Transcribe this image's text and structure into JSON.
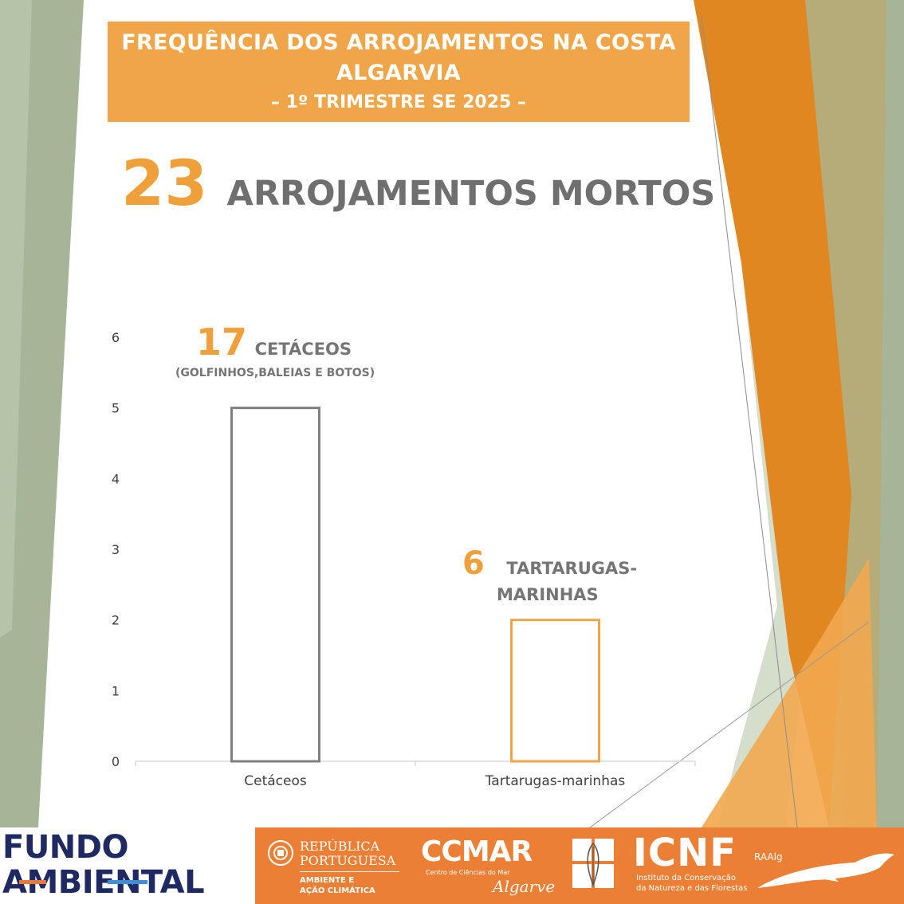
{
  "title": {
    "line1": "FREQUÊNCIA DOS ARROJAMENTOS NA COSTA",
    "line2": "ALGARVIA",
    "line3": "– 1º TRIMESTRE SE 2025 –"
  },
  "headline": {
    "total": "23",
    "label": "ARROJAMENTOS MORTOS"
  },
  "annotations": {
    "cetaceos": {
      "number": "17",
      "label": "CETÁCEOS",
      "sub": "(GOLFINHOS,BALEIAS E BOTOS)"
    },
    "tartarugas": {
      "number": "6",
      "label_line1": "TARTARUGAS-",
      "label_line2": "MARINHAS"
    }
  },
  "chart_data": {
    "type": "bar",
    "categories": [
      "Cetáceos",
      "Tartarugas-marinhas"
    ],
    "values": [
      5,
      2
    ],
    "bar_colors": [
      "#7f7f7f",
      "#f0a548"
    ],
    "ylim": [
      0,
      6
    ],
    "yticks": [
      "0",
      "1",
      "2",
      "3",
      "4",
      "5",
      "6"
    ],
    "grid": false,
    "xlabel": "",
    "ylabel": ""
  },
  "footer": {
    "fundo_line1": "FUNDO",
    "fundo_line2": "AMBIENTAL",
    "republica_line1": "REPÚBLICA",
    "republica_line2": "PORTUGUESA",
    "republica_sub1": "AMBIENTE E",
    "republica_sub2": "AÇÃO CLIMÁTICA",
    "ccmar": "CCMAR",
    "ccmar_sub": "Centro de Ciências do Mar",
    "ccmar_algarve": "Algarve",
    "icnf": "ICNF",
    "icnf_sub1": "Instituto da Conservação",
    "icnf_sub2": "da Natureza e das Florestas",
    "raalg": "RAAlg"
  },
  "colors": {
    "accent_orange": "#f0a548",
    "dark_orange": "#e07a1f",
    "sage_green": "#a6b497",
    "text_gray": "#6f6f6f",
    "footer_orange": "#ec7f36",
    "navy": "#1f2a63"
  }
}
